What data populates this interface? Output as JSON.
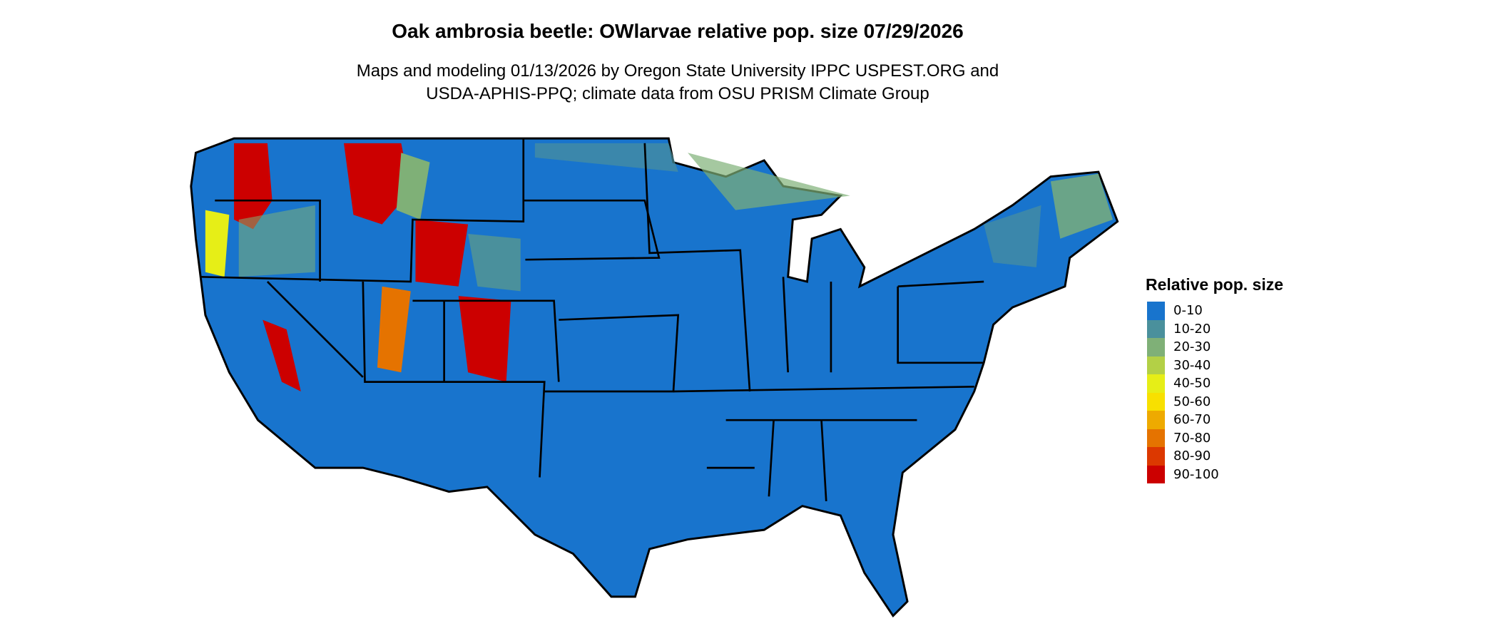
{
  "title": "Oak ambrosia beetle: OWlarvae relative pop. size 07/29/2026",
  "subtitle_line1": "Maps and modeling 01/13/2026 by Oregon State University IPPC USPEST.ORG and",
  "subtitle_line2": "USDA-APHIS-PPQ; climate data from OSU PRISM Climate Group",
  "legend": {
    "title": "Relative pop. size",
    "items": [
      {
        "label": "0-10",
        "color": "#1874CD"
      },
      {
        "label": "10-20",
        "color": "#4A909C"
      },
      {
        "label": "20-30",
        "color": "#7FB077"
      },
      {
        "label": "30-40",
        "color": "#B3D046"
      },
      {
        "label": "40-50",
        "color": "#E6EE17"
      },
      {
        "label": "50-60",
        "color": "#F8E000"
      },
      {
        "label": "60-70",
        "color": "#EEAA00"
      },
      {
        "label": "70-80",
        "color": "#E57300"
      },
      {
        "label": "80-90",
        "color": "#DC3800"
      },
      {
        "label": "90-100",
        "color": "#CC0000"
      }
    ]
  }
}
